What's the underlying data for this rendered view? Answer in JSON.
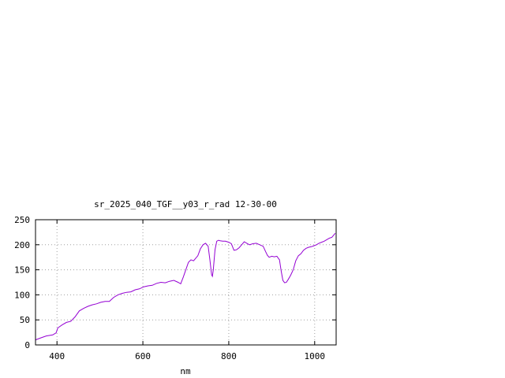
{
  "chart_data": {
    "type": "line",
    "title": "sr_2025_040_TGF__y03_r_rad 12-30-00",
    "xlabel": "nm",
    "ylabel": "",
    "xlim": [
      350,
      1050
    ],
    "ylim": [
      0,
      250
    ],
    "xticks": [
      400,
      600,
      800,
      1000
    ],
    "yticks": [
      0,
      50,
      100,
      150,
      200,
      250
    ],
    "grid": true,
    "line_color": "#9400d3",
    "series": [
      {
        "x": [
          350,
          362,
          375,
          390,
          398,
          402,
          412,
          422,
          432,
          442,
          452,
          462,
          472,
          482,
          492,
          502,
          512,
          522,
          532,
          542,
          552,
          562,
          572,
          582,
          592,
          602,
          612,
          622,
          632,
          642,
          652,
          662,
          672,
          682,
          688,
          694,
          700,
          706,
          712,
          718,
          722,
          728,
          734,
          740,
          746,
          752,
          756,
          760,
          762,
          764,
          768,
          772,
          776,
          780,
          786,
          792,
          800,
          806,
          812,
          818,
          824,
          830,
          836,
          842,
          848,
          856,
          864,
          872,
          880,
          886,
          890,
          894,
          900,
          906,
          912,
          918,
          922,
          926,
          930,
          934,
          938,
          944,
          950,
          956,
          962,
          968,
          974,
          980,
          986,
          992,
          998,
          1004,
          1010,
          1016,
          1022,
          1028,
          1034,
          1040,
          1048
        ],
        "y": [
          10,
          14,
          18,
          20,
          24,
          34,
          40,
          45,
          47,
          56,
          68,
          73,
          77,
          80,
          82,
          85,
          87,
          87,
          95,
          100,
          103,
          105,
          106,
          110,
          112,
          116,
          118,
          119,
          123,
          125,
          124,
          127,
          129,
          125,
          122,
          135,
          150,
          165,
          170,
          168,
          172,
          178,
          192,
          200,
          203,
          197,
          170,
          140,
          137,
          150,
          190,
          207,
          209,
          208,
          207,
          207,
          205,
          202,
          189,
          190,
          194,
          200,
          206,
          203,
          200,
          202,
          203,
          200,
          197,
          186,
          179,
          175,
          177,
          176,
          177,
          170,
          148,
          129,
          124,
          125,
          130,
          139,
          150,
          168,
          178,
          182,
          189,
          193,
          195,
          196,
          198,
          200,
          203,
          205,
          207,
          210,
          213,
          215,
          223
        ]
      }
    ]
  }
}
